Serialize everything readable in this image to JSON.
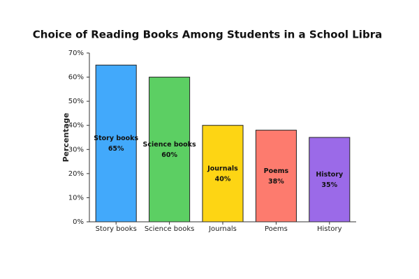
{
  "chart_data": {
    "type": "bar",
    "title": "Choice of Reading Books Among Students in a School Libra",
    "y_label": "Percentage",
    "categories": [
      "Story books",
      "Science books",
      "Journals",
      "Poems",
      "History"
    ],
    "values": [
      65,
      60,
      40,
      38,
      35
    ],
    "value_labels": [
      "65%",
      "60%",
      "40%",
      "38%",
      "35%"
    ],
    "colors": [
      "#42a9fb",
      "#5ccf63",
      "#fdd514",
      "#fd7b6e",
      "#9b6ae8"
    ],
    "ylim": [
      0,
      70
    ],
    "yticks": [
      {
        "value": 0,
        "label": "0%"
      },
      {
        "value": 10,
        "label": "10%"
      },
      {
        "value": 20,
        "label": "20%"
      },
      {
        "value": 30,
        "label": "30%"
      },
      {
        "value": 40,
        "label": "40%"
      },
      {
        "value": 50,
        "label": "50%"
      },
      {
        "value": 60,
        "label": "60%"
      },
      {
        "value": 70,
        "label": "70%"
      }
    ],
    "grid": false
  }
}
